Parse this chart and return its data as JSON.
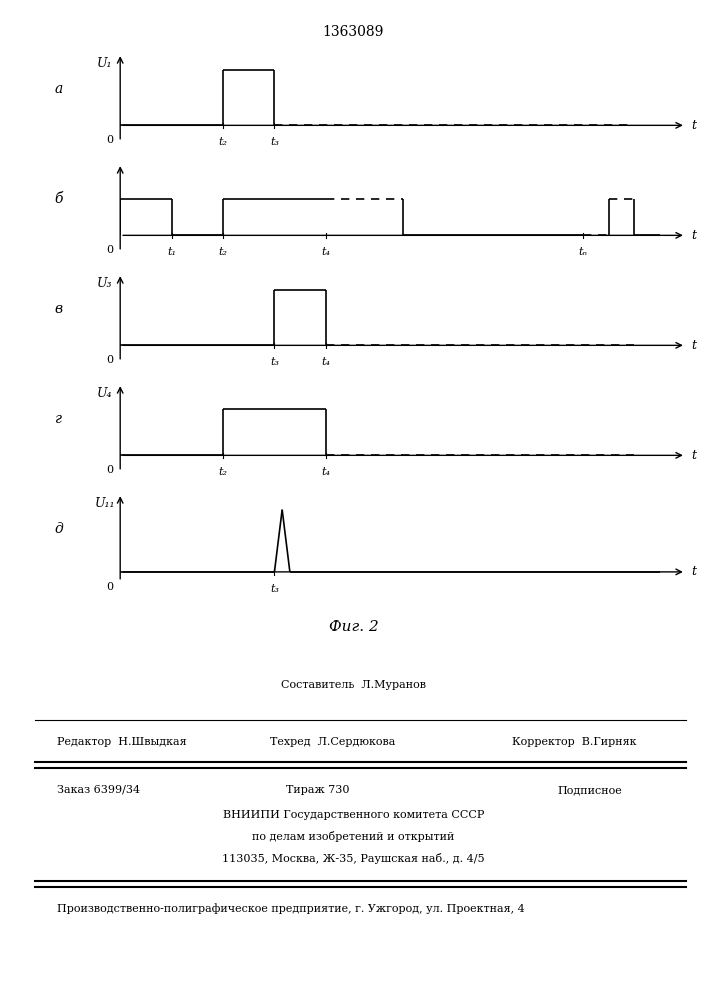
{
  "title": "1363089",
  "fig_label": "Фиг. 2",
  "background_color": "#f0f0f0",
  "subplots": [
    {
      "label": "а",
      "ylabel": "U₁",
      "xlabel": "t",
      "x_ticks": [
        "t₂",
        "t₃"
      ],
      "x_tick_pos": [
        2,
        3
      ],
      "baseline": 0.15,
      "segments": [
        {
          "type": "solid",
          "x": [
            0,
            2
          ],
          "y": [
            0.15,
            0.15
          ]
        },
        {
          "type": "solid",
          "x": [
            2,
            2
          ],
          "y": [
            0.15,
            1.0
          ]
        },
        {
          "type": "solid",
          "x": [
            2,
            3
          ],
          "y": [
            1.0,
            1.0
          ]
        },
        {
          "type": "solid",
          "x": [
            3,
            3
          ],
          "y": [
            1.0,
            0.15
          ]
        },
        {
          "type": "dashed",
          "x": [
            3,
            10
          ],
          "y": [
            0.15,
            0.15
          ]
        }
      ]
    },
    {
      "label": "б",
      "ylabel": "",
      "xlabel": "t",
      "x_ticks": [
        "t₁",
        "t₂",
        "t₄",
        "tₙ"
      ],
      "x_tick_pos": [
        1,
        2,
        4,
        9
      ],
      "baseline": 0.15,
      "segments": [
        {
          "type": "solid",
          "x": [
            0,
            0
          ],
          "y": [
            0.15,
            0.7
          ]
        },
        {
          "type": "solid",
          "x": [
            0,
            1
          ],
          "y": [
            0.7,
            0.7
          ]
        },
        {
          "type": "solid",
          "x": [
            1,
            1
          ],
          "y": [
            0.7,
            0.15
          ]
        },
        {
          "type": "solid",
          "x": [
            1,
            2
          ],
          "y": [
            0.15,
            0.15
          ]
        },
        {
          "type": "solid",
          "x": [
            2,
            2
          ],
          "y": [
            0.15,
            0.7
          ]
        },
        {
          "type": "solid",
          "x": [
            2,
            4
          ],
          "y": [
            0.7,
            0.7
          ]
        },
        {
          "type": "dashed",
          "x": [
            4,
            5.5
          ],
          "y": [
            0.7,
            0.7
          ]
        },
        {
          "type": "solid",
          "x": [
            5.5,
            5.5
          ],
          "y": [
            0.7,
            0.15
          ]
        },
        {
          "type": "solid",
          "x": [
            5.5,
            9
          ],
          "y": [
            0.15,
            0.15
          ]
        },
        {
          "type": "dashed",
          "x": [
            9,
            9.5
          ],
          "y": [
            0.15,
            0.15
          ]
        },
        {
          "type": "solid",
          "x": [
            9.5,
            9.5
          ],
          "y": [
            0.15,
            0.7
          ]
        },
        {
          "type": "dashed",
          "x": [
            9.5,
            10
          ],
          "y": [
            0.7,
            0.7
          ]
        },
        {
          "type": "solid",
          "x": [
            10,
            10
          ],
          "y": [
            0.7,
            0.15
          ]
        },
        {
          "type": "solid",
          "x": [
            10,
            10.5
          ],
          "y": [
            0.15,
            0.15
          ]
        }
      ]
    },
    {
      "label": "в",
      "ylabel": "U₃",
      "xlabel": "t",
      "x_ticks": [
        "t₃",
        "t₄"
      ],
      "x_tick_pos": [
        3,
        4
      ],
      "baseline": 0.15,
      "segments": [
        {
          "type": "solid",
          "x": [
            0,
            3
          ],
          "y": [
            0.15,
            0.15
          ]
        },
        {
          "type": "solid",
          "x": [
            3,
            3
          ],
          "y": [
            0.15,
            1.0
          ]
        },
        {
          "type": "solid",
          "x": [
            3,
            4
          ],
          "y": [
            1.0,
            1.0
          ]
        },
        {
          "type": "solid",
          "x": [
            4,
            4
          ],
          "y": [
            1.0,
            0.15
          ]
        },
        {
          "type": "dashed",
          "x": [
            4,
            10
          ],
          "y": [
            0.15,
            0.15
          ]
        }
      ]
    },
    {
      "label": "г",
      "ylabel": "U₄",
      "xlabel": "t",
      "x_ticks": [
        "t₂",
        "t₄"
      ],
      "x_tick_pos": [
        2,
        4
      ],
      "baseline": 0.15,
      "segments": [
        {
          "type": "solid",
          "x": [
            0,
            2
          ],
          "y": [
            0.15,
            0.15
          ]
        },
        {
          "type": "solid",
          "x": [
            2,
            2
          ],
          "y": [
            0.15,
            0.85
          ]
        },
        {
          "type": "solid",
          "x": [
            2,
            4
          ],
          "y": [
            0.85,
            0.85
          ]
        },
        {
          "type": "solid",
          "x": [
            4,
            4
          ],
          "y": [
            0.85,
            0.15
          ]
        },
        {
          "type": "dashed",
          "x": [
            4,
            10
          ],
          "y": [
            0.15,
            0.15
          ]
        }
      ]
    },
    {
      "label": "д",
      "ylabel": "U₁₁",
      "xlabel": "t",
      "x_ticks": [
        "t₃"
      ],
      "x_tick_pos": [
        3
      ],
      "baseline": 0.05,
      "segments": [
        {
          "type": "solid",
          "x": [
            0,
            3
          ],
          "y": [
            0.05,
            0.05
          ]
        },
        {
          "type": "solid",
          "x": [
            3,
            3.15
          ],
          "y": [
            0.05,
            1.0
          ]
        },
        {
          "type": "solid",
          "x": [
            3.15,
            3.3
          ],
          "y": [
            1.0,
            0.05
          ]
        },
        {
          "type": "solid",
          "x": [
            3.3,
            10.5
          ],
          "y": [
            0.05,
            0.05
          ]
        }
      ]
    }
  ],
  "footer": {
    "line1_left": "Редактор  Н.Швыдкая",
    "line1_center": "Составитель  Л.Муранов",
    "line2_center": "Техред  Л.Сердюкова",
    "line1_right": "Корректор  В.Гирняк",
    "order": "Заказ 6399/34",
    "tirazh": "Тираж 730",
    "podpisnoe": "Подписное",
    "vnipi": "ВНИИПИ Государственного комитета СССР",
    "po_delam": "по делам изобретений и открытий",
    "address": "113035, Москва, Ж-35, Раушская наб., д. 4/5",
    "production": "Производственно-полиграфическое предприятие, г. Ужгород, ул. Проектная, 4"
  }
}
